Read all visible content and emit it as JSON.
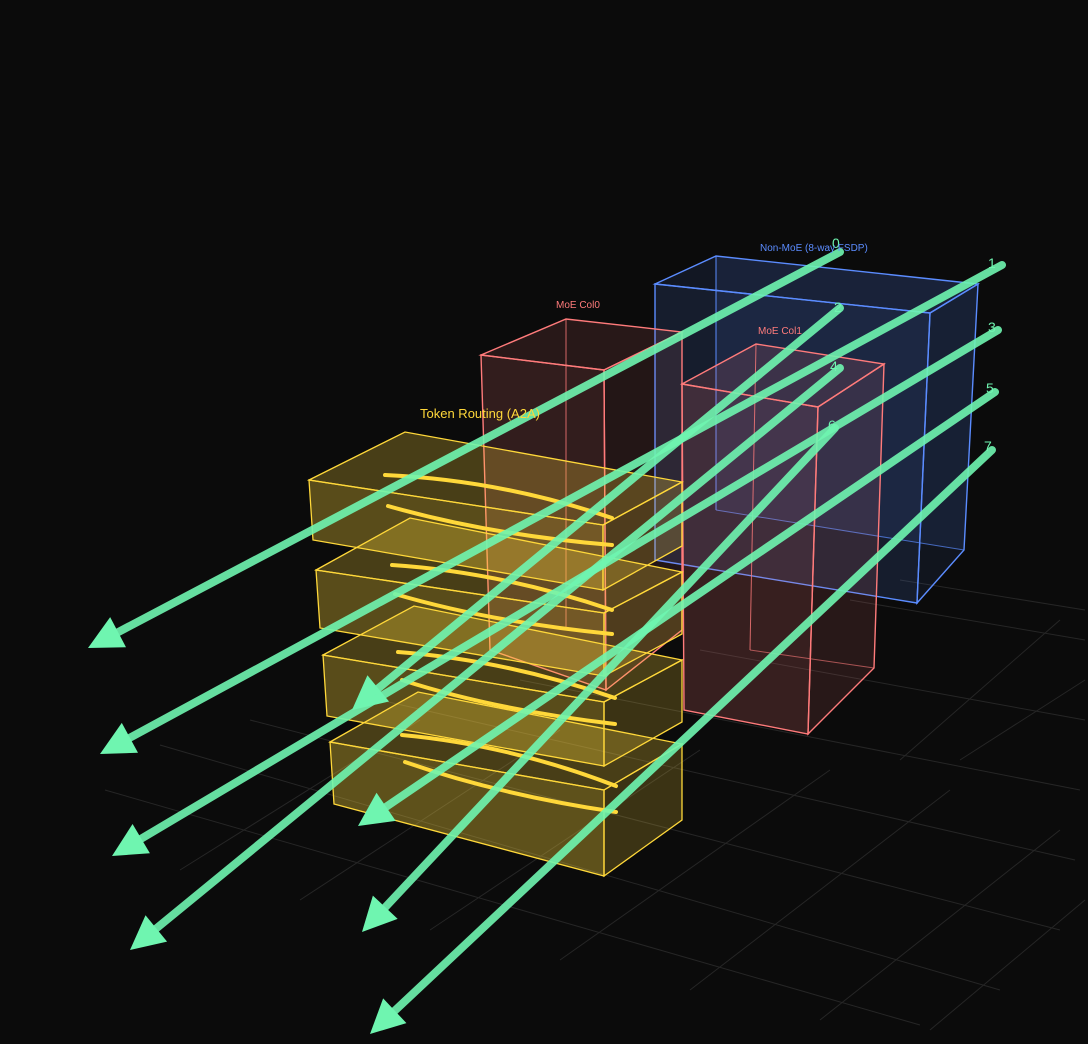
{
  "labels": {
    "non_moe": "Non-MoE (8-way FSDP)",
    "moe_col0": "MoE Col0",
    "moe_col1": "MoE Col1",
    "token_routing": "Token Routing (A2A)"
  },
  "rank_labels": [
    "0",
    "1",
    "2",
    "3",
    "4",
    "5",
    "6",
    "7"
  ],
  "colors": {
    "background": "#0b0b0b",
    "non_moe": "#5b8cff",
    "moe": "#ff7b7b",
    "routing": "#ffd83a",
    "arrow": "#6ff5b0",
    "grid": "#262626"
  }
}
